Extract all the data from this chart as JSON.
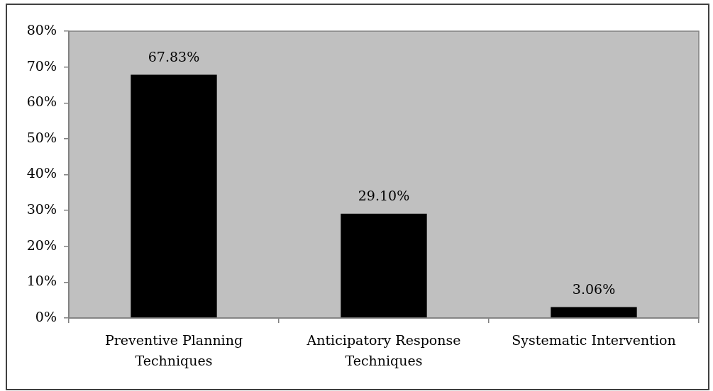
{
  "chart_data": {
    "type": "bar",
    "categories": [
      "Preventive Planning Techniques",
      "Anticipatory Response Techniques",
      "Systematic Intervention"
    ],
    "values": [
      67.83,
      29.1,
      3.06
    ],
    "color": "#000000",
    "value_labels": [
      "67.83%",
      "29.10%",
      "3.06%"
    ],
    "ylim": [
      0,
      80
    ],
    "yticks": [
      {
        "value": 0,
        "label": "0%"
      },
      {
        "value": 10,
        "label": "10%"
      },
      {
        "value": 20,
        "label": "20%"
      },
      {
        "value": 30,
        "label": "30%"
      },
      {
        "value": 40,
        "label": "40%"
      },
      {
        "value": 50,
        "label": "50%"
      },
      {
        "value": 60,
        "label": "60%"
      },
      {
        "value": 70,
        "label": "70%"
      },
      {
        "value": 80,
        "label": "80%"
      }
    ],
    "grid": false,
    "legend": false
  }
}
